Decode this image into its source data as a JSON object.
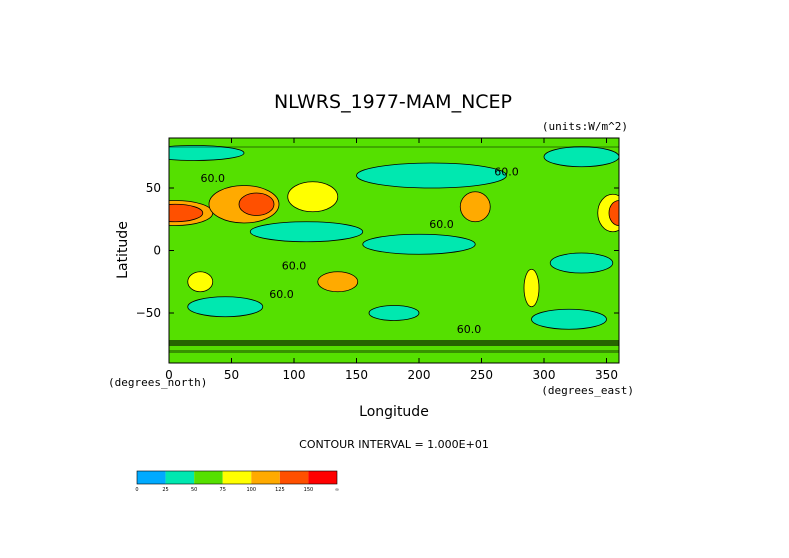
{
  "chart_data": {
    "type": "heatmap",
    "title": "NLWRS_1977-MAM_NCEP",
    "units_label": "(units:W/m^2)",
    "xlabel": "Longitude",
    "ylabel": "Latitude",
    "x_unit_label": "(degrees_east)",
    "y_unit_label": "(degrees_north)",
    "xlim": [
      0,
      360
    ],
    "ylim": [
      -90,
      90
    ],
    "x_ticks": [
      0,
      50,
      100,
      150,
      200,
      250,
      300,
      350
    ],
    "y_ticks": [
      50,
      0,
      -50
    ],
    "y_tick_labels": [
      "50",
      "0",
      "−50"
    ],
    "contour_interval_text": "CONTOUR INTERVAL = 1.000E+01",
    "contour_labels": [
      {
        "text": "60.0",
        "lon": 35,
        "lat": 55
      },
      {
        "text": "60.0",
        "lon": 218,
        "lat": 18
      },
      {
        "text": "60.0",
        "lon": 100,
        "lat": -15
      },
      {
        "text": "60.0",
        "lon": 90,
        "lat": -38
      },
      {
        "text": "60.0",
        "lon": 270,
        "lat": 60
      },
      {
        "text": "60.0",
        "lon": 240,
        "lat": -66
      }
    ],
    "regions": [
      {
        "level": 4,
        "lon": 5,
        "lat": 30,
        "rx": 30,
        "ry": 10
      },
      {
        "level": 5,
        "lon": 5,
        "lat": 30,
        "rx": 22,
        "ry": 7
      },
      {
        "level": 4,
        "lon": 60,
        "lat": 37,
        "rx": 28,
        "ry": 15
      },
      {
        "level": 5,
        "lon": 70,
        "lat": 37,
        "rx": 14,
        "ry": 9
      },
      {
        "level": 3,
        "lon": 115,
        "lat": 43,
        "rx": 20,
        "ry": 12
      },
      {
        "level": 4,
        "lon": 245,
        "lat": 35,
        "rx": 12,
        "ry": 12
      },
      {
        "level": 3,
        "lon": 355,
        "lat": 30,
        "rx": 12,
        "ry": 15
      },
      {
        "level": 5,
        "lon": 360,
        "lat": 30,
        "rx": 8,
        "ry": 10
      },
      {
        "level": 4,
        "lon": 135,
        "lat": -25,
        "rx": 16,
        "ry": 8
      },
      {
        "level": 3,
        "lon": 25,
        "lat": -25,
        "rx": 10,
        "ry": 8
      },
      {
        "level": 3,
        "lon": 290,
        "lat": -30,
        "rx": 6,
        "ry": 15
      },
      {
        "level": 1,
        "lon": 110,
        "lat": 15,
        "rx": 45,
        "ry": 8
      },
      {
        "level": 1,
        "lon": 200,
        "lat": 5,
        "rx": 45,
        "ry": 8
      },
      {
        "level": 1,
        "lon": 45,
        "lat": -45,
        "rx": 30,
        "ry": 8
      },
      {
        "level": 1,
        "lon": 330,
        "lat": -10,
        "rx": 25,
        "ry": 8
      },
      {
        "level": 1,
        "lon": 320,
        "lat": -55,
        "rx": 30,
        "ry": 8
      },
      {
        "level": 1,
        "lon": 180,
        "lat": -50,
        "rx": 20,
        "ry": 6
      },
      {
        "level": 1,
        "lon": 210,
        "lat": 60,
        "rx": 60,
        "ry": 10
      },
      {
        "level": 1,
        "lon": 20,
        "lat": 78,
        "rx": 40,
        "ry": 6
      },
      {
        "level": 1,
        "lon": 330,
        "lat": 75,
        "rx": 30,
        "ry": 8
      }
    ],
    "colorbar": {
      "colors": [
        "#00aaff",
        "#00e8b0",
        "#55e000",
        "#ffff00",
        "#ffaa00",
        "#ff5000",
        "#ff0000"
      ],
      "labels": [
        "0",
        "25",
        "50",
        "75",
        "100",
        "125",
        "150",
        "∞"
      ]
    }
  }
}
